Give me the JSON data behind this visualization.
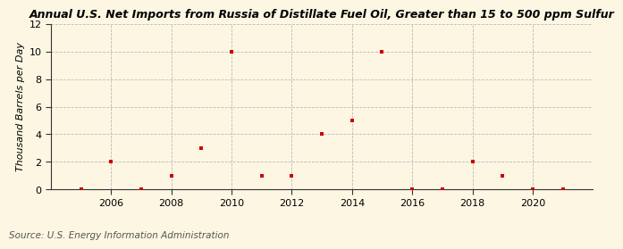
{
  "title": "Annual U.S. Net Imports from Russia of Distillate Fuel Oil, Greater than 15 to 500 ppm Sulfur",
  "ylabel": "Thousand Barrels per Day",
  "source": "Source: U.S. Energy Information Administration",
  "background_color": "#fdf6e3",
  "plot_bg_color": "#fdf6e3",
  "marker_color": "#cc0000",
  "grid_color": "#bbbbbb",
  "spine_color": "#333333",
  "years": [
    2005,
    2006,
    2007,
    2008,
    2009,
    2010,
    2011,
    2012,
    2013,
    2014,
    2015,
    2016,
    2017,
    2018,
    2019,
    2020,
    2021
  ],
  "values": [
    0,
    2,
    0,
    1,
    3,
    10,
    1,
    1,
    4,
    5,
    10,
    0,
    0,
    2,
    1,
    0,
    0
  ],
  "xlim": [
    2004.0,
    2022.0
  ],
  "ylim": [
    0,
    12
  ],
  "yticks": [
    0,
    2,
    4,
    6,
    8,
    10,
    12
  ],
  "xticks": [
    2006,
    2008,
    2010,
    2012,
    2014,
    2016,
    2018,
    2020
  ],
  "title_fontsize": 9,
  "ylabel_fontsize": 8,
  "tick_fontsize": 8,
  "source_fontsize": 7.5
}
